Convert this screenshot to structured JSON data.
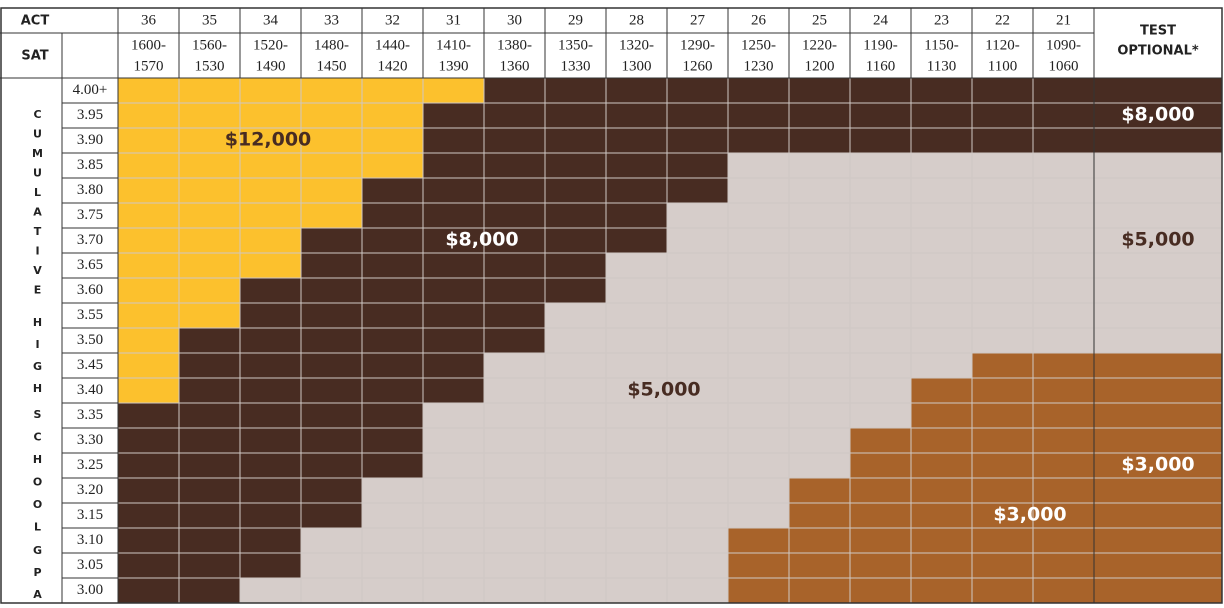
{
  "header": {
    "act_label": "ACT",
    "sat_label": "SAT",
    "test_optional": [
      "TEST",
      "OPTIONAL*"
    ],
    "side_label": [
      "CUMULATIVE",
      "HIGH",
      "SCHOOL",
      "GPA"
    ]
  },
  "columns": [
    {
      "act": "36",
      "sat": [
        "1600-",
        "1570"
      ]
    },
    {
      "act": "35",
      "sat": [
        "1560-",
        "1530"
      ]
    },
    {
      "act": "34",
      "sat": [
        "1520-",
        "1490"
      ]
    },
    {
      "act": "33",
      "sat": [
        "1480-",
        "1450"
      ]
    },
    {
      "act": "32",
      "sat": [
        "1440-",
        "1420"
      ]
    },
    {
      "act": "31",
      "sat": [
        "1410-",
        "1390"
      ]
    },
    {
      "act": "30",
      "sat": [
        "1380-",
        "1360"
      ]
    },
    {
      "act": "29",
      "sat": [
        "1350-",
        "1330"
      ]
    },
    {
      "act": "28",
      "sat": [
        "1320-",
        "1300"
      ]
    },
    {
      "act": "27",
      "sat": [
        "1290-",
        "1260"
      ]
    },
    {
      "act": "26",
      "sat": [
        "1250-",
        "1230"
      ]
    },
    {
      "act": "25",
      "sat": [
        "1220-",
        "1200"
      ]
    },
    {
      "act": "24",
      "sat": [
        "1190-",
        "1160"
      ]
    },
    {
      "act": "23",
      "sat": [
        "1150-",
        "1130"
      ]
    },
    {
      "act": "22",
      "sat": [
        "1120-",
        "1100"
      ]
    },
    {
      "act": "21",
      "sat": [
        "1090-",
        "1060"
      ]
    }
  ],
  "gpa": [
    "4.00+",
    "3.95",
    "3.90",
    "3.85",
    "3.80",
    "3.75",
    "3.70",
    "3.65",
    "3.60",
    "3.55",
    "3.50",
    "3.45",
    "3.40",
    "3.35",
    "3.30",
    "3.25",
    "3.20",
    "3.15",
    "3.10",
    "3.05",
    "3.00"
  ],
  "tier_colors": [
    "#fcc12d",
    "#482c22",
    "#d6cdca",
    "#a8632a"
  ],
  "grid_labels": [
    "$12,000",
    "$8,000",
    "$5,000",
    "$3,000"
  ],
  "test_optional_labels": [
    "$8,000",
    "$5,000",
    "$3,000"
  ],
  "grid": [
    [
      0,
      0,
      0,
      0,
      0,
      0,
      1,
      1,
      1,
      1,
      1,
      1,
      1,
      1,
      1,
      1,
      1
    ],
    [
      0,
      0,
      0,
      0,
      0,
      1,
      1,
      1,
      1,
      1,
      1,
      1,
      1,
      1,
      1,
      1,
      1
    ],
    [
      0,
      0,
      0,
      0,
      0,
      1,
      1,
      1,
      1,
      1,
      1,
      1,
      1,
      1,
      1,
      1,
      1
    ],
    [
      0,
      0,
      0,
      0,
      0,
      1,
      1,
      1,
      1,
      1,
      2,
      2,
      2,
      2,
      2,
      2,
      2
    ],
    [
      0,
      0,
      0,
      0,
      1,
      1,
      1,
      1,
      1,
      1,
      2,
      2,
      2,
      2,
      2,
      2,
      2
    ],
    [
      0,
      0,
      0,
      0,
      1,
      1,
      1,
      1,
      1,
      2,
      2,
      2,
      2,
      2,
      2,
      2,
      2
    ],
    [
      0,
      0,
      0,
      1,
      1,
      1,
      1,
      1,
      1,
      2,
      2,
      2,
      2,
      2,
      2,
      2,
      2
    ],
    [
      0,
      0,
      0,
      1,
      1,
      1,
      1,
      1,
      2,
      2,
      2,
      2,
      2,
      2,
      2,
      2,
      2
    ],
    [
      0,
      0,
      1,
      1,
      1,
      1,
      1,
      1,
      2,
      2,
      2,
      2,
      2,
      2,
      2,
      2,
      2
    ],
    [
      0,
      0,
      1,
      1,
      1,
      1,
      1,
      2,
      2,
      2,
      2,
      2,
      2,
      2,
      2,
      2,
      2
    ],
    [
      0,
      1,
      1,
      1,
      1,
      1,
      1,
      2,
      2,
      2,
      2,
      2,
      2,
      2,
      2,
      2,
      2
    ],
    [
      0,
      1,
      1,
      1,
      1,
      1,
      2,
      2,
      2,
      2,
      2,
      2,
      2,
      2,
      3,
      3,
      3
    ],
    [
      0,
      1,
      1,
      1,
      1,
      1,
      2,
      2,
      2,
      2,
      2,
      2,
      2,
      3,
      3,
      3,
      3
    ],
    [
      1,
      1,
      1,
      1,
      1,
      2,
      2,
      2,
      2,
      2,
      2,
      2,
      2,
      3,
      3,
      3,
      3
    ],
    [
      1,
      1,
      1,
      1,
      1,
      2,
      2,
      2,
      2,
      2,
      2,
      2,
      3,
      3,
      3,
      3,
      3
    ],
    [
      1,
      1,
      1,
      1,
      1,
      2,
      2,
      2,
      2,
      2,
      2,
      2,
      3,
      3,
      3,
      3,
      3
    ],
    [
      1,
      1,
      1,
      1,
      2,
      2,
      2,
      2,
      2,
      2,
      2,
      3,
      3,
      3,
      3,
      3,
      3
    ],
    [
      1,
      1,
      1,
      1,
      2,
      2,
      2,
      2,
      2,
      2,
      2,
      3,
      3,
      3,
      3,
      3,
      3
    ],
    [
      1,
      1,
      1,
      2,
      2,
      2,
      2,
      2,
      2,
      2,
      3,
      3,
      3,
      3,
      3,
      3,
      3
    ],
    [
      1,
      1,
      1,
      2,
      2,
      2,
      2,
      2,
      2,
      2,
      3,
      3,
      3,
      3,
      3,
      3,
      3
    ],
    [
      1,
      1,
      2,
      2,
      2,
      2,
      2,
      2,
      2,
      2,
      3,
      3,
      3,
      3,
      3,
      3,
      3
    ]
  ]
}
